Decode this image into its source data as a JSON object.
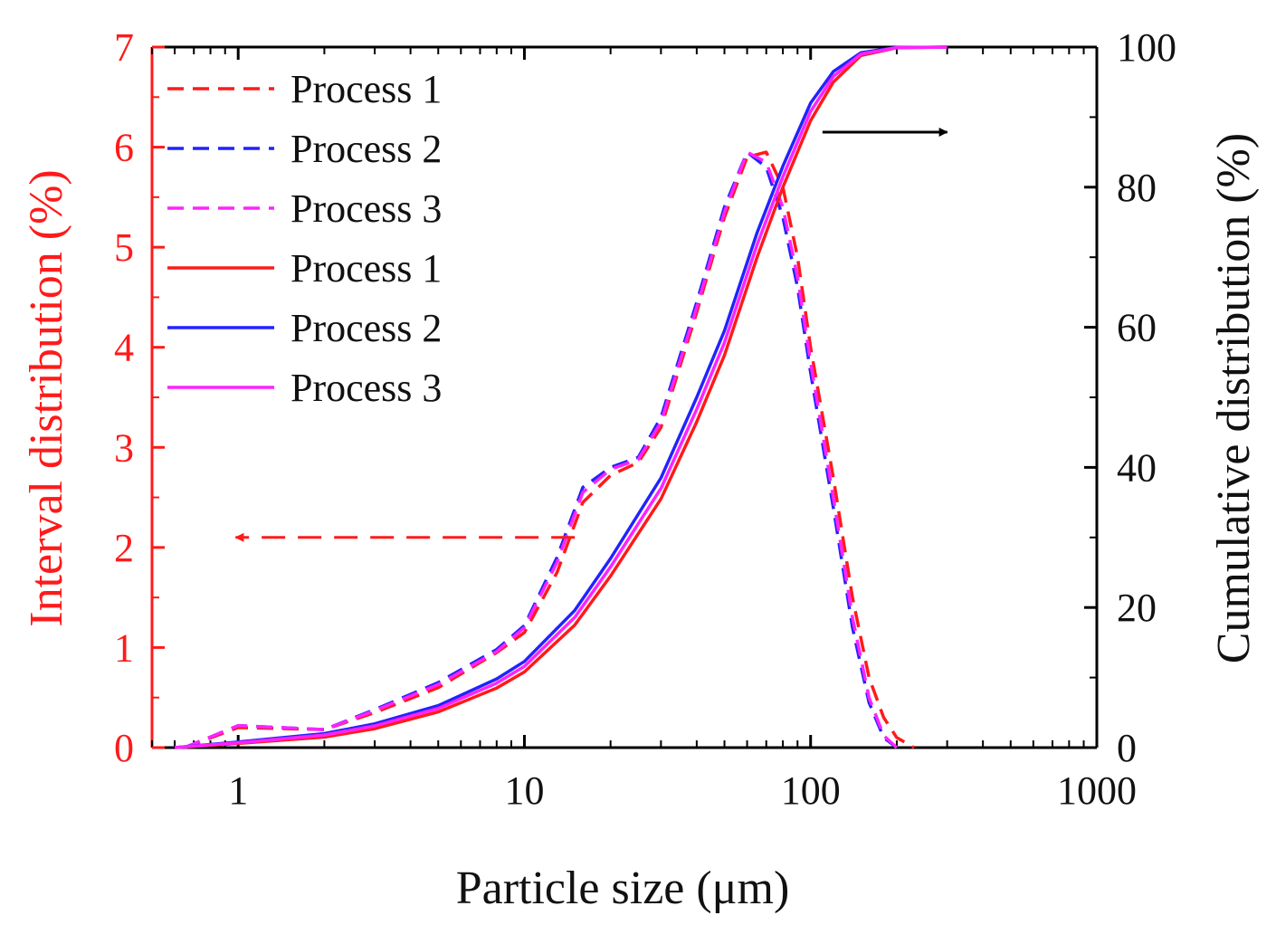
{
  "chart_data": {
    "type": "line",
    "xlabel": "Particle size (μm)",
    "ylabel_left": "Interval distribution (%)",
    "ylabel_right": "Cumulative distribution (%)",
    "x_scale": "log",
    "xlim": [
      0.5,
      1000
    ],
    "ylim_left": [
      0,
      7
    ],
    "ylim_right": [
      0,
      100
    ],
    "x_ticks": [
      1,
      10,
      100,
      1000
    ],
    "x_tick_labels": [
      "1",
      "10",
      "100",
      "1000"
    ],
    "y_left_ticks": [
      0,
      1,
      2,
      3,
      4,
      5,
      6,
      7
    ],
    "y_left_tick_labels": [
      "0",
      "1",
      "2",
      "3",
      "4",
      "5",
      "6",
      "7"
    ],
    "y_right_ticks": [
      0,
      20,
      40,
      60,
      80,
      100
    ],
    "y_right_tick_labels": [
      "0",
      "20",
      "40",
      "60",
      "80",
      "100"
    ],
    "colors": {
      "left_axis": "#ff1a1a",
      "right_axis": "#000000",
      "process1": "#ff1a1a",
      "process2": "#2222ff",
      "process3": "#ff22ff"
    },
    "legend_position": "top-left",
    "legend": [
      {
        "label": "Process 1",
        "style": "dashed",
        "color": "#ff1a1a"
      },
      {
        "label": "Process 2",
        "style": "dashed",
        "color": "#2222ff"
      },
      {
        "label": "Process 3",
        "style": "dashed",
        "color": "#ff22ff"
      },
      {
        "label": "Process 1",
        "style": "solid",
        "color": "#ff1a1a"
      },
      {
        "label": "Process 2",
        "style": "solid",
        "color": "#2222ff"
      },
      {
        "label": "Process 3",
        "style": "solid",
        "color": "#ff22ff"
      }
    ],
    "series": [
      {
        "name": "Process 1",
        "kind": "interval",
        "axis": "left",
        "style": "dashed",
        "color": "#ff1a1a",
        "x": [
          0.65,
          1,
          2,
          3,
          5,
          8,
          10,
          13,
          16,
          20,
          25,
          30,
          40,
          50,
          60,
          70,
          80,
          90,
          100,
          120,
          140,
          160,
          180,
          200,
          230
        ],
        "y": [
          0,
          0.2,
          0.18,
          0.35,
          0.6,
          0.95,
          1.15,
          1.75,
          2.45,
          2.72,
          2.85,
          3.2,
          4.35,
          5.3,
          5.9,
          5.95,
          5.6,
          4.9,
          4.0,
          2.7,
          1.5,
          0.7,
          0.3,
          0.1,
          0
        ]
      },
      {
        "name": "Process 2",
        "kind": "interval",
        "axis": "left",
        "style": "dashed",
        "color": "#2222ff",
        "x": [
          0.65,
          1,
          2,
          3,
          5,
          8,
          10,
          13,
          16,
          20,
          25,
          30,
          40,
          50,
          60,
          70,
          80,
          90,
          100,
          120,
          140,
          160,
          180,
          200
        ],
        "y": [
          0,
          0.22,
          0.18,
          0.38,
          0.65,
          0.98,
          1.22,
          1.9,
          2.6,
          2.8,
          2.9,
          3.3,
          4.45,
          5.4,
          5.95,
          5.8,
          5.3,
          4.6,
          3.75,
          2.4,
          1.2,
          0.45,
          0.1,
          0
        ]
      },
      {
        "name": "Process 3",
        "kind": "interval",
        "axis": "left",
        "style": "dashed",
        "color": "#ff22ff",
        "x": [
          0.65,
          1,
          2,
          3,
          5,
          8,
          10,
          13,
          16,
          20,
          25,
          30,
          40,
          50,
          60,
          70,
          80,
          90,
          100,
          120,
          140,
          160,
          180,
          200
        ],
        "y": [
          0,
          0.22,
          0.18,
          0.37,
          0.63,
          0.96,
          1.2,
          1.85,
          2.55,
          2.78,
          2.88,
          3.25,
          4.4,
          5.35,
          5.95,
          5.85,
          5.4,
          4.7,
          3.85,
          2.5,
          1.3,
          0.5,
          0.12,
          0
        ]
      },
      {
        "name": "Process 1",
        "kind": "cumulative",
        "axis": "right",
        "style": "solid",
        "color": "#ff1a1a",
        "x": [
          0.6,
          1,
          2,
          3,
          5,
          8,
          10,
          15,
          20,
          30,
          40,
          50,
          65,
          80,
          100,
          120,
          150,
          200,
          300
        ],
        "y": [
          0,
          0.6,
          1.5,
          2.7,
          5.1,
          8.5,
          10.8,
          17.5,
          24.5,
          35.5,
          46.5,
          56,
          70,
          80,
          89.5,
          95,
          98.8,
          99.9,
          100
        ]
      },
      {
        "name": "Process 2",
        "kind": "cumulative",
        "axis": "right",
        "style": "solid",
        "color": "#2222ff",
        "x": [
          0.6,
          1,
          2,
          3,
          5,
          8,
          10,
          15,
          20,
          30,
          40,
          50,
          65,
          80,
          100,
          120,
          150,
          200,
          300
        ],
        "y": [
          0,
          0.8,
          2,
          3.4,
          6,
          9.8,
          12.3,
          19.6,
          27,
          38.5,
          50,
          59.5,
          73.5,
          83,
          92,
          96.5,
          99.2,
          99.95,
          100
        ]
      },
      {
        "name": "Process 3",
        "kind": "cumulative",
        "axis": "right",
        "style": "solid",
        "color": "#ff22ff",
        "x": [
          0.6,
          1,
          2,
          3,
          5,
          8,
          10,
          15,
          20,
          30,
          40,
          50,
          65,
          80,
          100,
          120,
          150,
          200,
          300
        ],
        "y": [
          0,
          0.7,
          1.8,
          3.1,
          5.6,
          9.2,
          11.6,
          18.6,
          25.8,
          37,
          48.3,
          57.8,
          71.8,
          81.5,
          90.8,
          95.8,
          99,
          99.92,
          100
        ]
      }
    ],
    "annotations": [
      {
        "kind": "arrow",
        "style": "dashed",
        "color": "#ff1a1a",
        "direction": "left",
        "meaning": "dashed curves read on left axis",
        "from": [
          15,
          2.1
        ],
        "to": [
          0.98,
          2.1
        ]
      },
      {
        "kind": "arrow",
        "style": "solid",
        "color": "#000000",
        "direction": "right",
        "meaning": "solid curves read on right axis",
        "from": [
          110,
          6.15
        ],
        "to": [
          300,
          6.15
        ]
      }
    ]
  }
}
